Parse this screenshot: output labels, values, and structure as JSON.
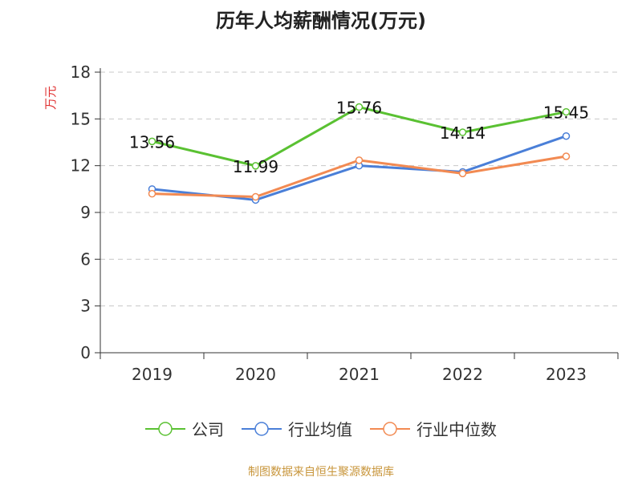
{
  "title": "历年人均薪酬情况(万元)",
  "source": "制图数据来自恒生聚源数据库",
  "chart_data": {
    "type": "line",
    "title": "历年人均薪酬情况(万元)",
    "ylabel": "万元",
    "xlabel": "",
    "categories": [
      "2019",
      "2020",
      "2021",
      "2022",
      "2023"
    ],
    "ylim": [
      0,
      18
    ],
    "yticks": [
      0,
      3,
      6,
      9,
      12,
      15,
      18
    ],
    "grid": true,
    "legend_position": "bottom",
    "series": [
      {
        "name": "公司",
        "color": "#5ac132",
        "values": [
          13.56,
          11.99,
          15.76,
          14.14,
          15.45
        ],
        "labels": [
          "13.56",
          "11.99",
          "15.76",
          "14.14",
          "15.45"
        ]
      },
      {
        "name": "行业均值",
        "color": "#4a7fd8",
        "values": [
          10.5,
          9.8,
          12.0,
          11.6,
          13.9
        ]
      },
      {
        "name": "行业中位数",
        "color": "#f28a52",
        "values": [
          10.2,
          10.0,
          12.35,
          11.5,
          12.6
        ]
      }
    ]
  }
}
